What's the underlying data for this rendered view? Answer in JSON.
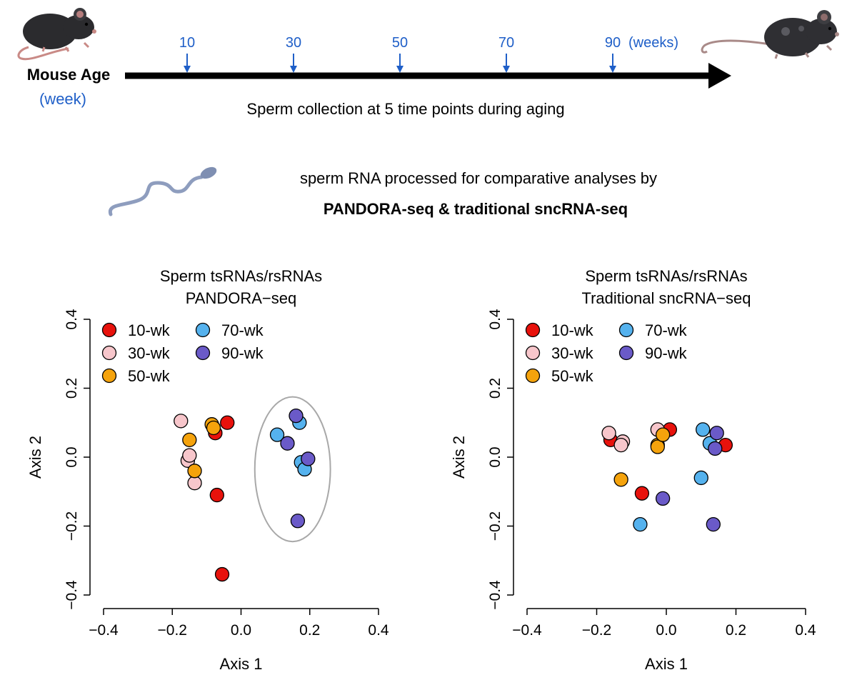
{
  "timeline": {
    "label": "Mouse Age",
    "unit": "(week)",
    "ticks": [
      "10",
      "30",
      "50",
      "70",
      "90"
    ],
    "tick_unit": "(weeks)",
    "caption": "Sperm collection at 5 time points during aging"
  },
  "processing": {
    "line1": "sperm RNA processed for comparative analyses by",
    "line2": "PANDORA-seq & traditional sncRNA-seq"
  },
  "colors": {
    "accent_blue": "#1f5fc8",
    "10-wk": "#e8120c",
    "30-wk": "#f7c6cb",
    "50-wk": "#f5a30c",
    "70-wk": "#55b2ee",
    "90-wk": "#6a5ac8"
  },
  "chart_data": [
    {
      "type": "scatter",
      "title": [
        "Sperm tsRNAs/rsRNAs",
        "PANDORA−seq"
      ],
      "xlabel": "Axis 1",
      "ylabel": "Axis 2",
      "xlim": [
        -0.4,
        0.4
      ],
      "ylim": [
        -0.4,
        0.4
      ],
      "xticks": [
        "−0.4",
        "−0.2",
        "0.0",
        "0.2",
        "0.4"
      ],
      "yticks": [
        "−0.4",
        "−0.2",
        "0.0",
        "0.2",
        "0.4"
      ],
      "legend": "top-left",
      "highlight_ellipse": {
        "cx": 0.15,
        "cy": -0.035,
        "rx": 0.11,
        "ry": 0.21
      },
      "series": [
        {
          "name": "10-wk",
          "points": [
            [
              -0.04,
              0.1
            ],
            [
              -0.075,
              0.07
            ],
            [
              -0.07,
              -0.11
            ],
            [
              -0.055,
              -0.34
            ]
          ]
        },
        {
          "name": "30-wk",
          "points": [
            [
              -0.175,
              0.105
            ],
            [
              -0.155,
              -0.01
            ],
            [
              -0.15,
              0.005
            ],
            [
              -0.135,
              -0.075
            ]
          ]
        },
        {
          "name": "50-wk",
          "points": [
            [
              -0.15,
              0.05
            ],
            [
              -0.085,
              0.095
            ],
            [
              -0.08,
              0.085
            ],
            [
              -0.135,
              -0.04
            ]
          ]
        },
        {
          "name": "70-wk",
          "points": [
            [
              0.105,
              0.065
            ],
            [
              0.17,
              0.1
            ],
            [
              0.175,
              -0.015
            ],
            [
              0.185,
              -0.035
            ]
          ]
        },
        {
          "name": "90-wk",
          "points": [
            [
              0.16,
              0.12
            ],
            [
              0.135,
              0.04
            ],
            [
              0.195,
              -0.005
            ],
            [
              0.165,
              -0.185
            ]
          ]
        }
      ]
    },
    {
      "type": "scatter",
      "title": [
        "Sperm tsRNAs/rsRNAs",
        "Traditional sncRNA−seq"
      ],
      "xlabel": "Axis 1",
      "ylabel": "Axis 2",
      "xlim": [
        -0.4,
        0.4
      ],
      "ylim": [
        -0.4,
        0.4
      ],
      "xticks": [
        "−0.4",
        "−0.2",
        "0.0",
        "0.2",
        "0.4"
      ],
      "yticks": [
        "−0.4",
        "−0.2",
        "0.0",
        "0.2",
        "0.4"
      ],
      "legend": "top-left",
      "series": [
        {
          "name": "10-wk",
          "points": [
            [
              -0.16,
              0.05
            ],
            [
              0.01,
              0.08
            ],
            [
              0.17,
              0.035
            ],
            [
              -0.07,
              -0.105
            ]
          ]
        },
        {
          "name": "30-wk",
          "points": [
            [
              -0.165,
              0.07
            ],
            [
              -0.125,
              0.045
            ],
            [
              -0.13,
              0.035
            ],
            [
              -0.025,
              0.08
            ]
          ]
        },
        {
          "name": "50-wk",
          "points": [
            [
              -0.025,
              0.035
            ],
            [
              -0.025,
              0.03
            ],
            [
              -0.01,
              0.065
            ],
            [
              -0.13,
              -0.065
            ]
          ]
        },
        {
          "name": "70-wk",
          "points": [
            [
              0.105,
              0.08
            ],
            [
              0.125,
              0.04
            ],
            [
              0.1,
              -0.06
            ],
            [
              -0.075,
              -0.195
            ]
          ]
        },
        {
          "name": "90-wk",
          "points": [
            [
              0.145,
              0.07
            ],
            [
              0.14,
              0.025
            ],
            [
              -0.01,
              -0.12
            ],
            [
              0.135,
              -0.195
            ]
          ]
        }
      ]
    }
  ]
}
